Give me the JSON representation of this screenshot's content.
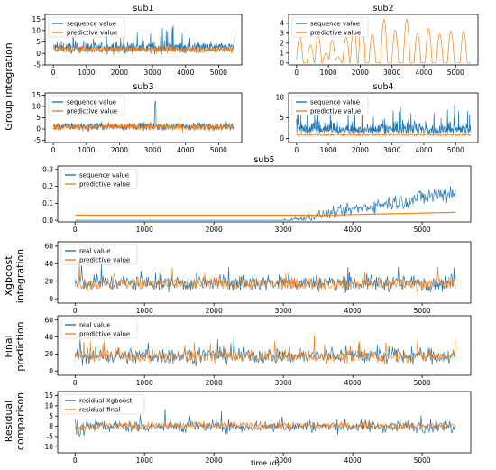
{
  "colors": {
    "series_a": "#1f77b4",
    "series_b": "#ff7f0e",
    "axis": "#000000",
    "legend_border": "#cccccc"
  },
  "row_labels": {
    "group": "Group integration",
    "xgb_1": "Xgboost",
    "xgb_2": "integration",
    "final_1": "Final",
    "final_2": "prediction",
    "resid_1": "Residual",
    "resid_2": "comparison"
  },
  "xlabel": "time (d)",
  "chart_data": [
    {
      "type": "line",
      "title": "sub1",
      "xlim": [
        -250,
        5700
      ],
      "ylim": [
        -5,
        17
      ],
      "xticks": [
        0,
        1000,
        2000,
        3000,
        4000,
        5000
      ],
      "yticks": [
        -5,
        0,
        5,
        10,
        15
      ],
      "series": [
        {
          "name": "sequence value",
          "color": "#1f77b4"
        },
        {
          "name": "predictive value",
          "color": "#ff7f0e"
        }
      ],
      "legend": "upper-left",
      "description": "noisy series around 2-3 with spikes to ~12"
    },
    {
      "type": "line",
      "title": "sub2",
      "xlim": [
        -250,
        5700
      ],
      "ylim": [
        -0.2,
        4.9
      ],
      "xticks": [
        0,
        1000,
        2000,
        3000,
        4000,
        5000
      ],
      "yticks": [
        0,
        1,
        2,
        3,
        4
      ],
      "series": [
        {
          "name": "sequence value",
          "color": "#1f77b4"
        },
        {
          "name": "predictive value",
          "color": "#ff7f0e"
        }
      ],
      "legend": "upper-left",
      "peaks": [
        [
          100,
          2.6
        ],
        [
          440,
          1.8
        ],
        [
          680,
          2.8
        ],
        [
          930,
          1.0
        ],
        [
          1120,
          2.3
        ],
        [
          1310,
          0.6
        ],
        [
          1560,
          2.6
        ],
        [
          1800,
          3.6
        ],
        [
          2050,
          4.6
        ],
        [
          2380,
          2.9
        ],
        [
          2750,
          4.4
        ],
        [
          3100,
          3.3
        ],
        [
          3460,
          4.4
        ],
        [
          3800,
          3.0
        ],
        [
          4150,
          3.5
        ],
        [
          4500,
          2.9
        ],
        [
          4850,
          3.2
        ],
        [
          5250,
          3.2
        ]
      ]
    },
    {
      "type": "line",
      "title": "sub3",
      "xlim": [
        -250,
        5700
      ],
      "ylim": [
        -6,
        16
      ],
      "xticks": [
        0,
        1000,
        2000,
        3000,
        4000,
        5000
      ],
      "yticks": [
        -5,
        0,
        5,
        10,
        15
      ],
      "series": [
        {
          "name": "sequence value",
          "color": "#1f77b4"
        },
        {
          "name": "predictive value",
          "color": "#ff7f0e"
        }
      ],
      "legend": "upper-left"
    },
    {
      "type": "line",
      "title": "sub4",
      "xlim": [
        -250,
        5700
      ],
      "ylim": [
        -1,
        11
      ],
      "xticks": [
        0,
        1000,
        2000,
        3000,
        4000,
        5000
      ],
      "yticks": [
        0,
        5,
        10
      ],
      "series": [
        {
          "name": "sequence value",
          "color": "#1f77b4"
        },
        {
          "name": "predictive value",
          "color": "#ff7f0e"
        }
      ],
      "legend": "upper-left"
    },
    {
      "type": "line",
      "title": "sub5",
      "xlim": [
        -250,
        5700
      ],
      "ylim": [
        -0.01,
        0.32
      ],
      "xticks": [
        0,
        1000,
        2000,
        3000,
        4000,
        5000
      ],
      "yticks": [
        0.0,
        0.1,
        0.2,
        0.3
      ],
      "series": [
        {
          "name": "sequence value",
          "color": "#1f77b4"
        },
        {
          "name": "predictive value",
          "color": "#ff7f0e"
        }
      ],
      "legend": "upper-left"
    },
    {
      "type": "line",
      "title": "",
      "xlim": [
        -250,
        5700
      ],
      "ylim": [
        -5,
        65
      ],
      "xticks": [
        0,
        1000,
        2000,
        3000,
        4000,
        5000
      ],
      "yticks": [
        0,
        20,
        40,
        60
      ],
      "series": [
        {
          "name": "real value",
          "color": "#1f77b4"
        },
        {
          "name": "predictive value",
          "color": "#ff7f0e"
        }
      ],
      "legend": "upper-left"
    },
    {
      "type": "line",
      "title": "",
      "xlim": [
        -250,
        5700
      ],
      "ylim": [
        -5,
        65
      ],
      "xticks": [
        0,
        1000,
        2000,
        3000,
        4000,
        5000
      ],
      "yticks": [
        0,
        20,
        40,
        60
      ],
      "series": [
        {
          "name": "real value",
          "color": "#1f77b4"
        },
        {
          "name": "predictive value",
          "color": "#ff7f0e"
        }
      ],
      "legend": "upper-left"
    },
    {
      "type": "line",
      "title": "",
      "xlim": [
        -250,
        5700
      ],
      "ylim": [
        -13,
        17
      ],
      "xticks": [
        0,
        1000,
        2000,
        3000,
        4000,
        5000
      ],
      "yticks": [
        -10,
        -5,
        0,
        5,
        10,
        15
      ],
      "series": [
        {
          "name": "residual-Xgboost",
          "color": "#1f77b4"
        },
        {
          "name": "residual-final",
          "color": "#ff7f0e"
        }
      ],
      "legend": "upper-left"
    }
  ]
}
